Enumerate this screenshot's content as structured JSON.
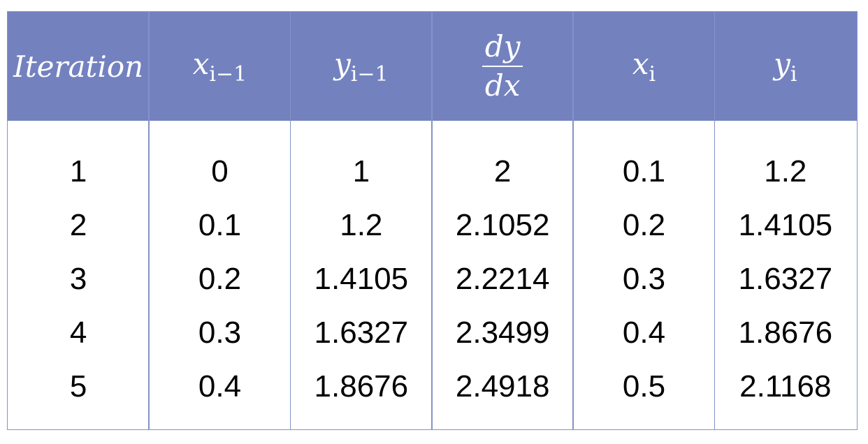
{
  "table": {
    "header": [
      {
        "base": "Iteration"
      },
      {
        "base": "x",
        "sub": "i−1"
      },
      {
        "base": "y",
        "sub": "i−1"
      },
      {
        "num": "dy",
        "den": "dx"
      },
      {
        "base": "x",
        "sub": "i"
      },
      {
        "base": "y",
        "sub": "i"
      }
    ],
    "rows": [
      [
        1,
        0,
        1,
        2,
        0.1,
        1.2
      ],
      [
        2,
        0.1,
        1.2,
        2.1052,
        0.2,
        1.4105
      ],
      [
        3,
        0.2,
        1.4105,
        2.2214,
        0.3,
        1.6327
      ],
      [
        4,
        0.3,
        1.6327,
        2.3499,
        0.4,
        1.8676
      ],
      [
        5,
        0.4,
        1.8676,
        2.4918,
        0.5,
        2.1168
      ]
    ]
  }
}
